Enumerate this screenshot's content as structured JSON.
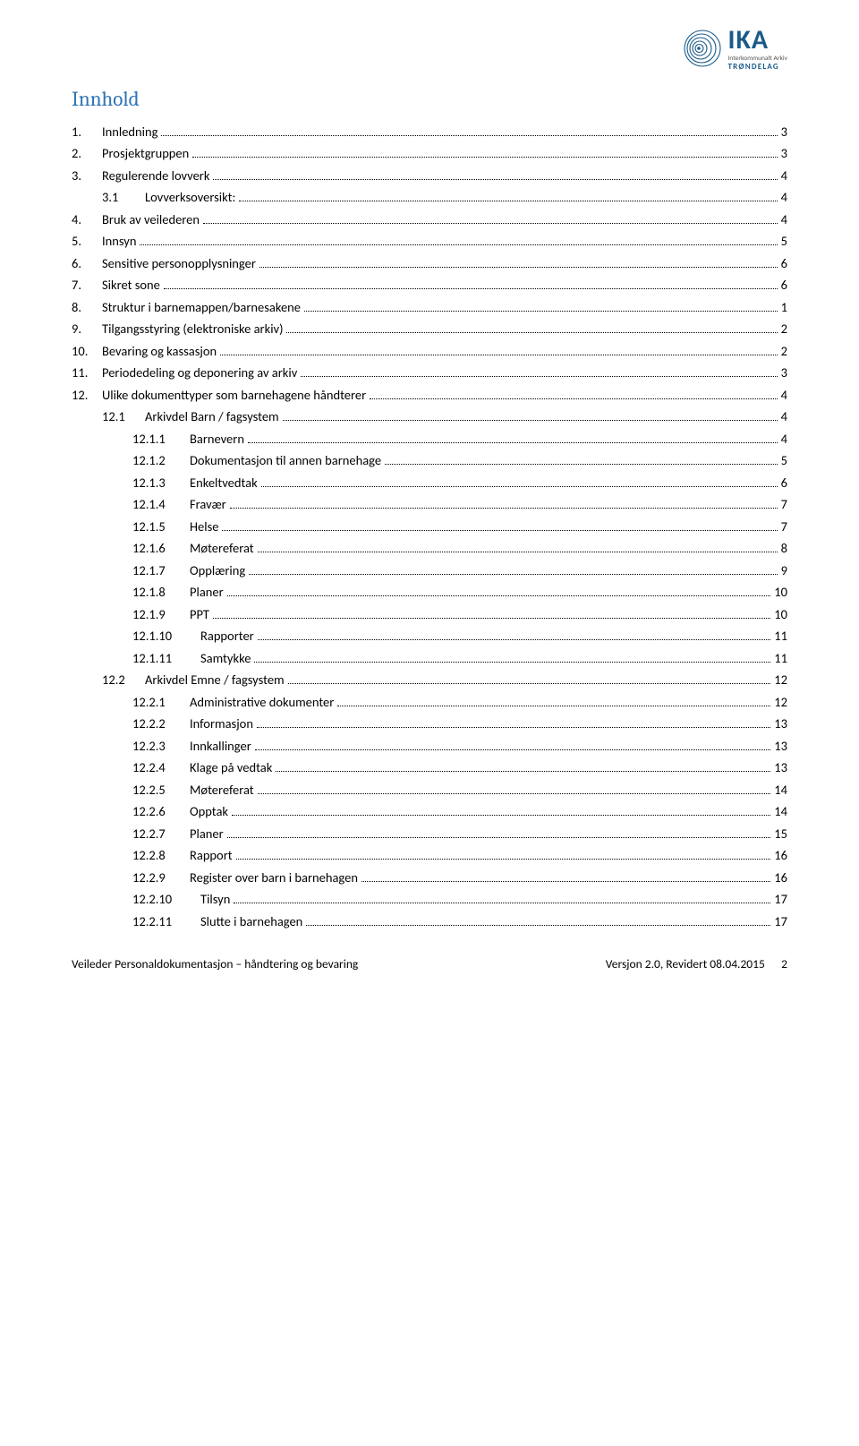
{
  "logo": {
    "name": "IKA",
    "sub1": "Interkommunalt Arkiv",
    "sub2": "TRØNDELAG",
    "circle_color": "#1a5a8a",
    "text_color": "#1a5a8a"
  },
  "title": "Innhold",
  "toc": [
    {
      "level": 0,
      "num": "1.",
      "label": "Innledning",
      "page": "3"
    },
    {
      "level": 0,
      "num": "2.",
      "label": "Prosjektgruppen",
      "page": "3"
    },
    {
      "level": 0,
      "num": "3.",
      "label": "Regulerende lovverk",
      "page": "4"
    },
    {
      "level": 1,
      "num": "3.1",
      "label": "Lovverksoversikt:",
      "page": "4"
    },
    {
      "level": 0,
      "num": "4.",
      "label": "Bruk av veilederen",
      "page": "4"
    },
    {
      "level": 0,
      "num": "5.",
      "label": "Innsyn",
      "page": "5"
    },
    {
      "level": 0,
      "num": "6.",
      "label": "Sensitive personopplysninger",
      "page": "6"
    },
    {
      "level": 0,
      "num": "7.",
      "label": "Sikret sone",
      "page": "6"
    },
    {
      "level": 0,
      "num": "8.",
      "label": "Struktur i barnemappen/barnesakene",
      "page": "1"
    },
    {
      "level": 0,
      "num": "9.",
      "label": "Tilgangsstyring (elektroniske arkiv)",
      "page": "2"
    },
    {
      "level": 0,
      "num": "10.",
      "label": "Bevaring og kassasjon",
      "page": "2"
    },
    {
      "level": 0,
      "num": "11.",
      "label": "Periodedeling og deponering av arkiv",
      "page": "3"
    },
    {
      "level": 0,
      "num": "12.",
      "label": "Ulike dokumenttyper som barnehagene håndterer",
      "page": "4"
    },
    {
      "level": 1,
      "num": "12.1",
      "label": "Arkivdel Barn / fagsystem",
      "page": "4"
    },
    {
      "level": 2,
      "num": "12.1.1",
      "label": "Barnevern",
      "page": "4"
    },
    {
      "level": 2,
      "num": "12.1.2",
      "label": "Dokumentasjon til annen barnehage",
      "page": "5"
    },
    {
      "level": 2,
      "num": "12.1.3",
      "label": "Enkeltvedtak",
      "page": "6"
    },
    {
      "level": 2,
      "num": "12.1.4",
      "label": "Fravær",
      "page": "7"
    },
    {
      "level": 2,
      "num": "12.1.5",
      "label": "Helse",
      "page": "7"
    },
    {
      "level": 2,
      "num": "12.1.6",
      "label": "Møtereferat",
      "page": "8"
    },
    {
      "level": 2,
      "num": "12.1.7",
      "label": "Opplæring",
      "page": "9"
    },
    {
      "level": 2,
      "num": "12.1.8",
      "label": "Planer",
      "page": "10"
    },
    {
      "level": 2,
      "num": "12.1.9",
      "label": "PPT",
      "page": "10"
    },
    {
      "level": 3,
      "num": "12.1.10",
      "label": "Rapporter",
      "page": "11"
    },
    {
      "level": 3,
      "num": "12.1.11",
      "label": "Samtykke",
      "page": "11"
    },
    {
      "level": 1,
      "num": "12.2",
      "label": "Arkivdel Emne / fagsystem",
      "page": "12"
    },
    {
      "level": 2,
      "num": "12.2.1",
      "label": "Administrative dokumenter",
      "page": "12"
    },
    {
      "level": 2,
      "num": "12.2.2",
      "label": "Informasjon",
      "page": "13"
    },
    {
      "level": 2,
      "num": "12.2.3",
      "label": "Innkallinger",
      "page": "13"
    },
    {
      "level": 2,
      "num": "12.2.4",
      "label": "Klage på vedtak",
      "page": "13"
    },
    {
      "level": 2,
      "num": "12.2.5",
      "label": "Møtereferat",
      "page": "14"
    },
    {
      "level": 2,
      "num": "12.2.6",
      "label": "Opptak",
      "page": "14"
    },
    {
      "level": 2,
      "num": "12.2.7",
      "label": "Planer",
      "page": "15"
    },
    {
      "level": 2,
      "num": "12.2.8",
      "label": "Rapport",
      "page": "16"
    },
    {
      "level": 2,
      "num": "12.2.9",
      "label": "Register over barn i barnehagen",
      "page": "16"
    },
    {
      "level": 3,
      "num": "12.2.10",
      "label": "Tilsyn",
      "page": "17"
    },
    {
      "level": 3,
      "num": "12.2.11",
      "label": "Slutte i barnehagen",
      "page": "17"
    }
  ],
  "footer": {
    "left": "Veileder Personaldokumentasjon – håndtering og bevaring",
    "right": "Versjon 2.0, Revidert  08.04.2015",
    "page": "2"
  }
}
